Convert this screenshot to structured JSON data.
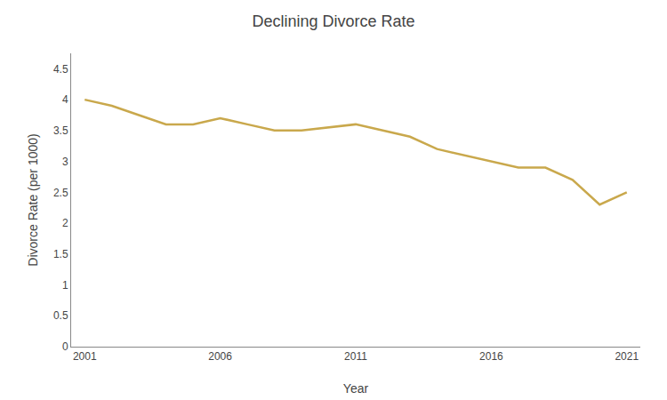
{
  "chart_data": {
    "type": "line",
    "title": "Declining Divorce Rate",
    "xlabel": "Year",
    "ylabel": "Divorce Rate (per 1000)",
    "x": [
      2001,
      2002,
      2003,
      2004,
      2005,
      2006,
      2007,
      2008,
      2009,
      2010,
      2011,
      2012,
      2013,
      2014,
      2015,
      2016,
      2017,
      2018,
      2019,
      2020,
      2021
    ],
    "values": [
      4.0,
      3.9,
      3.75,
      3.6,
      3.6,
      3.7,
      3.6,
      3.5,
      3.5,
      3.55,
      3.6,
      3.5,
      3.4,
      3.2,
      3.1,
      3.0,
      2.9,
      2.9,
      2.7,
      2.3,
      2.5
    ],
    "color": "#C9A84C",
    "xlim": [
      2000.5,
      2021.5
    ],
    "xticks": [
      2001,
      2006,
      2011,
      2016,
      2021
    ],
    "ylim": [
      0,
      4.75
    ],
    "yticks": [
      0,
      0.5,
      1,
      1.5,
      2,
      2.5,
      3,
      3.5,
      4,
      4.5
    ],
    "grid": false
  }
}
